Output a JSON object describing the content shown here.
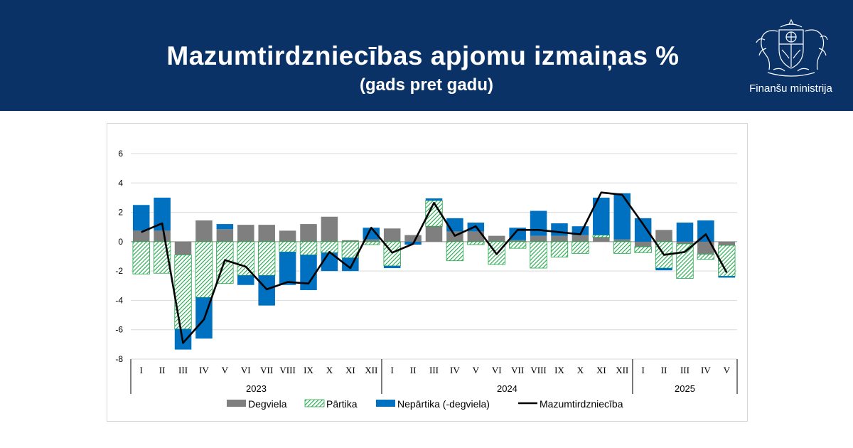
{
  "header": {
    "title": "Mazumtirdzniecības apjomu izmaiņas %",
    "subtitle": "(gads pret gadu)",
    "ministry": "Finanšu ministrija",
    "background": "#0b3266"
  },
  "chart_data": {
    "type": "bar",
    "stacked": true,
    "ylim": [
      -8,
      6
    ],
    "yticks": [
      -8,
      -6,
      -4,
      -2,
      0,
      2,
      4,
      6
    ],
    "grid": true,
    "legend_position": "bottom",
    "groups": [
      {
        "year": "2023",
        "months": [
          "I",
          "II",
          "III",
          "IV",
          "V",
          "VI",
          "VII",
          "VIII",
          "IX",
          "X",
          "XI",
          "XII"
        ]
      },
      {
        "year": "2024",
        "months": [
          "I",
          "II",
          "III",
          "IV",
          "V",
          "VI",
          "VII",
          "VIII",
          "IX",
          "X",
          "XI",
          "XII"
        ]
      },
      {
        "year": "2025",
        "months": [
          "I",
          "II",
          "III",
          "IV",
          "V"
        ]
      }
    ],
    "series": [
      {
        "name": "Degviela",
        "kind": "bar",
        "color": "#7f7f7f",
        "values": [
          0.75,
          0.75,
          -0.9,
          1.45,
          0.85,
          1.15,
          1.15,
          0.75,
          1.2,
          1.7,
          0.1,
          0.15,
          0.9,
          0.45,
          1.05,
          0.7,
          0.7,
          0.4,
          0.1,
          0.4,
          0.4,
          0.45,
          0.3,
          0.15,
          -0.35,
          0.8,
          -0.15,
          -0.85,
          -0.25
        ]
      },
      {
        "name": "Pārtika",
        "kind": "bar",
        "color": "#22a84a",
        "pattern": "hatch",
        "values": [
          -2.2,
          -2.15,
          -5.05,
          -3.8,
          -2.85,
          -2.3,
          -2.3,
          -0.7,
          -0.9,
          -0.75,
          -1.1,
          -0.2,
          -1.65,
          0.0,
          1.75,
          -1.3,
          -0.2,
          -1.55,
          -0.45,
          -1.8,
          -1.05,
          -0.8,
          0.15,
          -0.8,
          -0.4,
          -1.8,
          -2.35,
          -0.35,
          -2.1
        ]
      },
      {
        "name": "Nepārtika (-degviela)",
        "kind": "bar",
        "color": "#0070c0",
        "values": [
          1.75,
          2.25,
          -1.4,
          -2.8,
          0.35,
          -0.65,
          -2.05,
          -2.25,
          -2.4,
          -1.25,
          -0.9,
          0.8,
          -0.15,
          -0.2,
          0.15,
          0.9,
          0.6,
          0.0,
          0.85,
          1.7,
          0.85,
          0.6,
          2.55,
          3.15,
          1.6,
          -0.15,
          1.3,
          1.45,
          -0.1
        ]
      },
      {
        "name": "Mazumtirdzniecība",
        "kind": "line",
        "color": "#000000",
        "values": [
          0.65,
          1.25,
          -6.9,
          -5.3,
          -1.25,
          -1.7,
          -3.25,
          -2.75,
          -2.85,
          -0.7,
          -1.8,
          0.95,
          -0.75,
          -0.15,
          2.65,
          0.4,
          1.05,
          -0.85,
          0.8,
          0.8,
          0.65,
          0.5,
          3.35,
          3.2,
          1.2,
          -0.9,
          -0.7,
          0.5,
          -2.1
        ]
      }
    ]
  }
}
